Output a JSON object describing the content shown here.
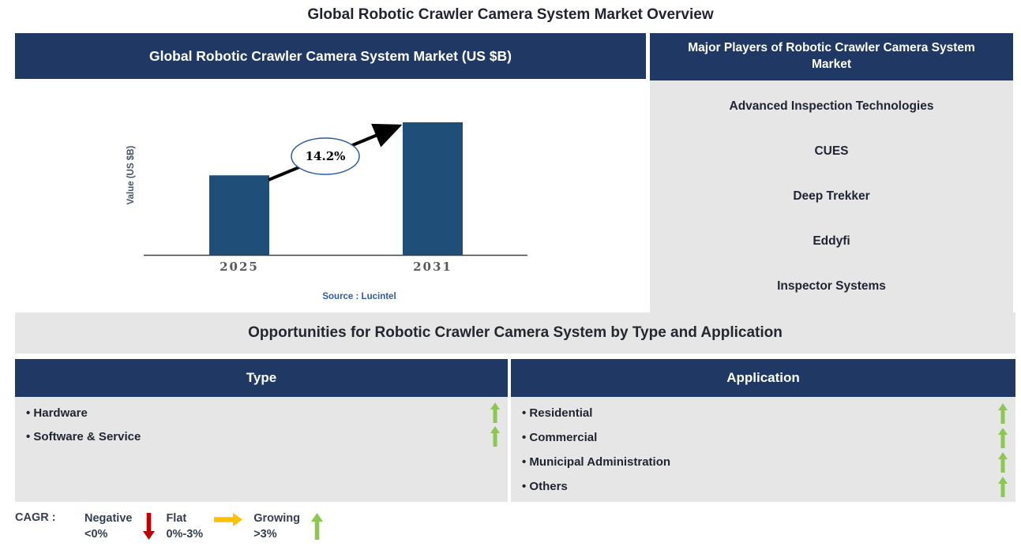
{
  "page": {
    "title": "Global Robotic Crawler Camera System Market Overview"
  },
  "market_panel": {
    "header": "Global Robotic Crawler Camera System Market (US $B)",
    "source": "Source : Lucintel"
  },
  "chart_data": {
    "type": "bar",
    "title": "Global Robotic Crawler Camera System Market (US $B)",
    "categories": [
      "2025",
      "2031"
    ],
    "values": [
      0.6,
      1.0
    ],
    "value_note": "y-axis has no numeric ticks; values are relative bar heights with 2031 normalized to 1.0",
    "xlabel": "",
    "ylabel": "Value (US $B)",
    "grid": false,
    "legend_position": "none",
    "bar_color": "#1F4E79",
    "annotation": {
      "cagr_label": "14.2%",
      "from": "2025",
      "to": "2031",
      "shape": "ellipse-with-arrow"
    }
  },
  "players_panel": {
    "header": "Major Players of Robotic Crawler Camera System Market",
    "players": [
      "Advanced Inspection Technologies",
      "CUES",
      "Deep Trekker",
      "Eddyfi",
      "Inspector Systems"
    ]
  },
  "opportunities": {
    "title": "Opportunities for Robotic Crawler Camera System by Type and Application",
    "type_table": {
      "header": "Type",
      "rows": [
        {
          "label": "Hardware",
          "trend": "growing"
        },
        {
          "label": "Software & Service",
          "trend": "growing"
        }
      ]
    },
    "application_table": {
      "header": "Application",
      "rows": [
        {
          "label": "Residential",
          "trend": "growing"
        },
        {
          "label": "Commercial",
          "trend": "growing"
        },
        {
          "label": "Municipal Administration",
          "trend": "growing"
        },
        {
          "label": "Others",
          "trend": "growing"
        }
      ]
    }
  },
  "legend": {
    "label": "CAGR :",
    "entries": [
      {
        "name": "Negative",
        "range": "<0%",
        "direction": "down",
        "color": "#C00000"
      },
      {
        "name": "Flat",
        "range": "0%-3%",
        "direction": "right",
        "color": "#FFC000"
      },
      {
        "name": "Growing",
        "range": ">3%",
        "direction": "up",
        "color": "#8CC751"
      }
    ]
  },
  "colors": {
    "header_navy": "#1F3864",
    "bar_blue": "#1F4E79",
    "panel_gray": "#E6E6E6",
    "growing_green": "#8CC751",
    "negative_red": "#C00000",
    "flat_yellow": "#FFC000",
    "source_blue": "#2E5B9F",
    "tick_gray": "#595959"
  }
}
